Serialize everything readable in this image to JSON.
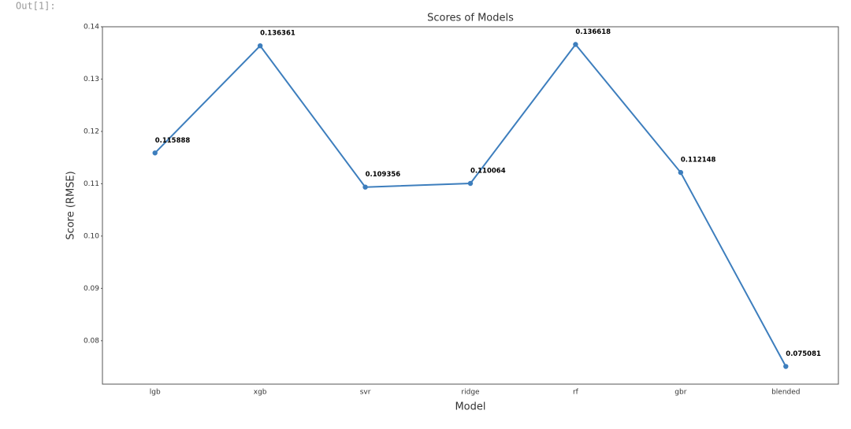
{
  "prompt": "Out[1]:",
  "chart_data": {
    "type": "line",
    "title": "Scores of Models",
    "x_label": "Model",
    "y_label": "Score (RMSE)",
    "categories": [
      "lgb",
      "xgb",
      "svr",
      "ridge",
      "rf",
      "gbr",
      "blended"
    ],
    "values": [
      0.115888,
      0.136361,
      0.109356,
      0.110064,
      0.136618,
      0.112148,
      0.075081
    ],
    "color": "#3d7ebd",
    "ylim": [
      0.0717,
      0.14
    ],
    "yticks": [
      0.08,
      0.09,
      {
        "value": 0.1,
        "label": "0.10"
      },
      0.11,
      0.12,
      0.13,
      0.14
    ],
    "grid": false
  }
}
